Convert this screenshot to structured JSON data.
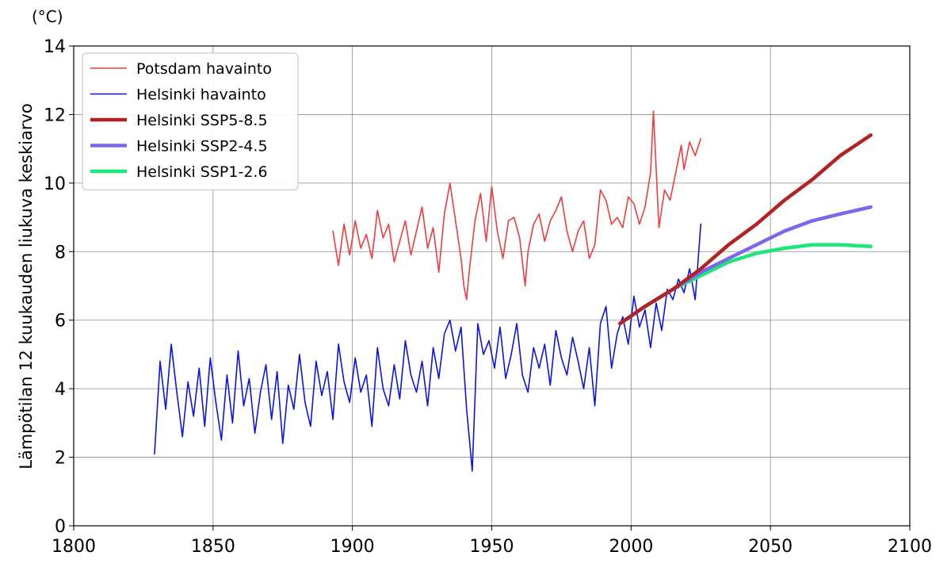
{
  "chart_data": {
    "type": "line",
    "unit_label": "(°C)",
    "ylabel": "Lämpötilan 12 kuukauden liukuva keskiarvo",
    "xlabel": "",
    "xlim": [
      1800,
      2100
    ],
    "ylim": [
      0,
      14
    ],
    "x_ticks": [
      1800,
      1850,
      1900,
      1950,
      2000,
      2050,
      2100
    ],
    "y_ticks": [
      0,
      2,
      4,
      6,
      8,
      10,
      12,
      14
    ],
    "x_tick_labels": [
      "1800",
      "1850",
      "1900",
      "1950",
      "2000",
      "2050",
      "2100"
    ],
    "y_tick_labels": [
      "0",
      "2",
      "4",
      "6",
      "8",
      "10",
      "12",
      "14"
    ],
    "grid": true,
    "legend_position": "top-left",
    "series": [
      {
        "name": "Potsdam havainto",
        "color": "#f03c3c",
        "style": "thin",
        "x": [
          1893,
          1895,
          1897,
          1899,
          1901,
          1903,
          1905,
          1907,
          1909,
          1911,
          1913,
          1915,
          1917,
          1919,
          1921,
          1923,
          1925,
          1927,
          1929,
          1931,
          1933,
          1935,
          1937,
          1939,
          1940,
          1941,
          1942,
          1944,
          1946,
          1948,
          1950,
          1952,
          1954,
          1956,
          1958,
          1960,
          1962,
          1963,
          1965,
          1967,
          1969,
          1971,
          1973,
          1975,
          1977,
          1979,
          1981,
          1983,
          1985,
          1987,
          1989,
          1991,
          1993,
          1995,
          1997,
          1999,
          2001,
          2003,
          2005,
          2007,
          2008,
          2010,
          2012,
          2014,
          2016,
          2018,
          2019,
          2021,
          2023,
          2025
        ],
        "values": [
          8.6,
          7.6,
          8.8,
          7.9,
          8.9,
          8.1,
          8.5,
          7.8,
          9.2,
          8.4,
          8.8,
          7.7,
          8.3,
          8.9,
          7.9,
          8.6,
          9.3,
          8.1,
          8.7,
          7.4,
          9.1,
          10.0,
          8.9,
          7.8,
          7.0,
          6.6,
          7.5,
          8.9,
          9.7,
          8.3,
          9.9,
          8.6,
          7.8,
          8.9,
          9.0,
          8.4,
          7.0,
          8.0,
          8.8,
          9.1,
          8.3,
          8.9,
          9.2,
          9.6,
          8.6,
          8.0,
          8.6,
          8.9,
          7.8,
          8.2,
          9.8,
          9.5,
          8.8,
          9.0,
          8.7,
          9.6,
          9.4,
          8.8,
          9.3,
          10.3,
          12.1,
          8.7,
          9.8,
          9.5,
          10.3,
          11.1,
          10.4,
          11.2,
          10.8,
          11.3
        ]
      },
      {
        "name": "Helsinki havainto",
        "color": "#0a14e6",
        "style": "thin",
        "x": [
          1829,
          1831,
          1833,
          1835,
          1837,
          1839,
          1841,
          1843,
          1845,
          1847,
          1849,
          1851,
          1853,
          1855,
          1857,
          1859,
          1861,
          1863,
          1865,
          1867,
          1869,
          1871,
          1873,
          1875,
          1877,
          1879,
          1881,
          1883,
          1885,
          1887,
          1889,
          1891,
          1893,
          1895,
          1897,
          1899,
          1901,
          1903,
          1905,
          1907,
          1909,
          1911,
          1913,
          1915,
          1917,
          1919,
          1921,
          1923,
          1925,
          1927,
          1929,
          1931,
          1933,
          1935,
          1937,
          1939,
          1941,
          1942,
          1943,
          1945,
          1947,
          1949,
          1951,
          1953,
          1955,
          1957,
          1959,
          1961,
          1963,
          1965,
          1967,
          1969,
          1971,
          1973,
          1975,
          1977,
          1979,
          1981,
          1983,
          1985,
          1987,
          1989,
          1991,
          1993,
          1995,
          1997,
          1999,
          2001,
          2003,
          2005,
          2007,
          2009,
          2011,
          2013,
          2015,
          2017,
          2019,
          2021,
          2023,
          2025
        ],
        "values": [
          2.1,
          4.8,
          3.4,
          5.3,
          3.9,
          2.6,
          4.2,
          3.2,
          4.6,
          2.9,
          4.9,
          3.6,
          2.5,
          4.4,
          3.0,
          5.1,
          3.5,
          4.3,
          2.7,
          3.9,
          4.7,
          3.1,
          4.5,
          2.4,
          4.1,
          3.4,
          5.0,
          3.6,
          2.9,
          4.8,
          3.8,
          4.5,
          3.1,
          5.3,
          4.2,
          3.6,
          4.9,
          3.9,
          4.4,
          2.9,
          5.2,
          4.0,
          3.5,
          4.7,
          3.7,
          5.4,
          4.4,
          3.9,
          4.8,
          3.5,
          5.2,
          4.3,
          5.6,
          6.0,
          5.1,
          5.8,
          3.4,
          2.5,
          1.6,
          5.9,
          5.0,
          5.4,
          4.6,
          5.8,
          4.3,
          5.0,
          5.9,
          4.4,
          3.9,
          5.2,
          4.6,
          5.3,
          4.1,
          5.7,
          4.9,
          4.4,
          5.5,
          4.8,
          4.0,
          5.2,
          3.5,
          5.9,
          6.4,
          4.6,
          5.6,
          6.1,
          5.3,
          6.7,
          5.8,
          6.3,
          5.2,
          6.5,
          5.7,
          6.9,
          6.6,
          7.2,
          6.8,
          7.5,
          6.6,
          8.8
        ]
      },
      {
        "name": "Helsinki SSP5-8.5",
        "color": "#b22222",
        "style": "thick",
        "x": [
          1996,
          2005,
          2015,
          2025,
          2035,
          2045,
          2055,
          2065,
          2075,
          2086
        ],
        "values": [
          5.9,
          6.4,
          6.9,
          7.5,
          8.2,
          8.8,
          9.5,
          10.1,
          10.8,
          11.4
        ]
      },
      {
        "name": "Helsinki SSP2-4.5",
        "color": "#7b68ee",
        "style": "thick",
        "x": [
          1996,
          2005,
          2015,
          2025,
          2035,
          2045,
          2055,
          2065,
          2075,
          2086
        ],
        "values": [
          5.9,
          6.4,
          6.9,
          7.4,
          7.8,
          8.2,
          8.6,
          8.9,
          9.1,
          9.3
        ]
      },
      {
        "name": "Helsinki SSP1-2.6",
        "color": "#1ee67a",
        "style": "thick",
        "x": [
          1996,
          2005,
          2015,
          2025,
          2035,
          2045,
          2055,
          2065,
          2075,
          2086
        ],
        "values": [
          5.9,
          6.4,
          6.9,
          7.3,
          7.7,
          7.95,
          8.1,
          8.2,
          8.2,
          8.15
        ]
      }
    ]
  }
}
